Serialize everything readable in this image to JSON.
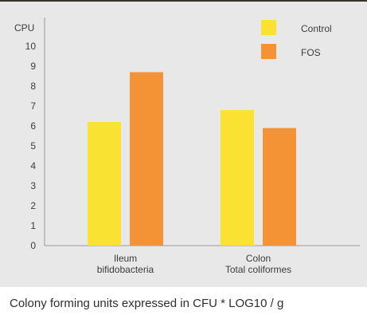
{
  "caption": "Colony forming units expressed in CFU * LOG10 / g",
  "chart_data": {
    "type": "bar",
    "ylabel": "CPU",
    "ylim": [
      0,
      10
    ],
    "yticks": [
      0,
      1,
      2,
      3,
      4,
      5,
      6,
      7,
      8,
      9,
      10
    ],
    "categories": [
      [
        "Ileum",
        "bifidobacteria"
      ],
      [
        "Colon",
        "Total coliformes"
      ]
    ],
    "series": [
      {
        "name": "Control",
        "color": "#f9e231",
        "values": [
          6.2,
          6.8
        ]
      },
      {
        "name": "FOS",
        "color": "#f49335",
        "values": [
          8.7,
          5.9
        ]
      }
    ],
    "grid": false,
    "legend": "top-right"
  }
}
